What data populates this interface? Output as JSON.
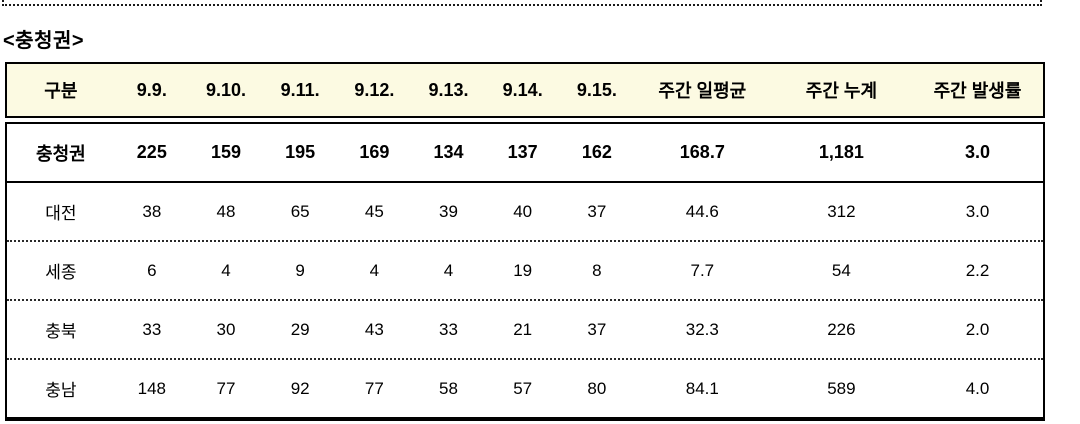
{
  "section": {
    "title": "<충청권>"
  },
  "table": {
    "header_bg_color": "#FCFAE2",
    "border_color": "#000000",
    "columns": [
      "구분",
      "9.9.",
      "9.10.",
      "9.11.",
      "9.12.",
      "9.13.",
      "9.14.",
      "9.15.",
      "주간 일평균",
      "주간 누계",
      "주간 발생률"
    ],
    "rows": [
      {
        "label": "충청권",
        "values": [
          "225",
          "159",
          "195",
          "169",
          "134",
          "137",
          "162",
          "168.7",
          "1,181",
          "3.0"
        ],
        "bold": true
      },
      {
        "label": "대전",
        "values": [
          "38",
          "48",
          "65",
          "45",
          "39",
          "40",
          "37",
          "44.6",
          "312",
          "3.0"
        ],
        "bold": false
      },
      {
        "label": "세종",
        "values": [
          "6",
          "4",
          "9",
          "4",
          "4",
          "19",
          "8",
          "7.7",
          "54",
          "2.2"
        ],
        "bold": false
      },
      {
        "label": "충북",
        "values": [
          "33",
          "30",
          "29",
          "43",
          "33",
          "21",
          "37",
          "32.3",
          "226",
          "2.0"
        ],
        "bold": false
      },
      {
        "label": "충남",
        "values": [
          "148",
          "77",
          "92",
          "77",
          "58",
          "57",
          "80",
          "84.1",
          "589",
          "4.0"
        ],
        "bold": false
      }
    ]
  }
}
